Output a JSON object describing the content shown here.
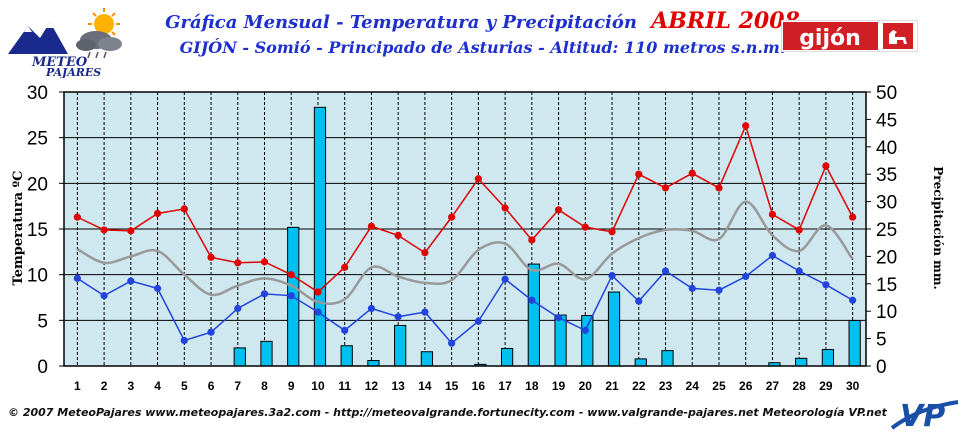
{
  "header": {
    "title": "Gráfica Mensual - Temperatura y Precipitación",
    "month": "ABRIL 2008",
    "subtitle": "GIJÓN - Somió - Principado de Asturias - Altitud: 110 metros s.n.m.",
    "logo_left_text_1": "METEO",
    "logo_left_text_2": "PAJARES",
    "logo_right_text": "gijón"
  },
  "footer": {
    "text": "© 2007 MeteoPajares www.meteopajares.3a2.com - http://meteovalgrande.fortunecity.com - www.valgrande-pajares.net Meteorología VP.net",
    "logo_text": "VP"
  },
  "colors": {
    "plot_bg": "#cfe8ef",
    "bar": "#00c0f0",
    "max_temp": "#e00000",
    "min_temp": "#2244dd",
    "avg_temp": "#999999",
    "title_blue": "#1d2fcc",
    "title_red": "#e00000"
  },
  "chart_data": {
    "type": "bar",
    "xlabel": "",
    "ylabel": "Temperatura ºC",
    "y2label": "Precipitación mm.",
    "ylim": [
      0,
      30
    ],
    "y2lim": [
      0,
      50
    ],
    "yticks": [
      0,
      5,
      10,
      15,
      20,
      25,
      30
    ],
    "y2ticks": [
      0,
      5,
      10,
      15,
      20,
      25,
      30,
      35,
      40,
      45,
      50
    ],
    "grid": true,
    "categories": [
      "1",
      "2",
      "3",
      "4",
      "5",
      "6",
      "7",
      "8",
      "9",
      "10",
      "11",
      "12",
      "13",
      "14",
      "15",
      "16",
      "17",
      "18",
      "19",
      "20",
      "21",
      "22",
      "23",
      "24",
      "25",
      "26",
      "27",
      "28",
      "29",
      "30"
    ],
    "series": [
      {
        "kind": "bar",
        "axis": "right",
        "values": [
          0,
          0,
          0,
          0,
          0,
          0,
          3.3,
          4.5,
          25.3,
          47.2,
          3.7,
          1.0,
          7.4,
          2.6,
          0,
          0.3,
          3.2,
          18.6,
          9.3,
          9.2,
          13.5,
          1.3,
          2.8,
          0,
          0,
          0,
          0.6,
          1.4,
          3.0,
          8.3
        ]
      },
      {
        "kind": "line",
        "axis": "left",
        "color": "#e00000",
        "values": [
          16.3,
          14.9,
          14.8,
          16.7,
          17.2,
          11.9,
          11.3,
          11.4,
          10.0,
          8.1,
          10.8,
          15.3,
          14.3,
          12.4,
          16.3,
          20.5,
          17.3,
          13.8,
          17.1,
          15.2,
          14.7,
          21.0,
          19.5,
          21.1,
          19.5,
          26.3,
          16.6,
          14.9,
          21.9,
          16.3
        ]
      },
      {
        "kind": "line",
        "axis": "left",
        "color": "#2244dd",
        "values": [
          9.6,
          7.7,
          9.3,
          8.5,
          2.8,
          3.7,
          6.3,
          7.9,
          7.7,
          5.9,
          3.9,
          6.3,
          5.4,
          5.9,
          2.5,
          4.9,
          9.5,
          7.2,
          5.3,
          3.9,
          9.9,
          7.1,
          10.4,
          8.5,
          8.3,
          9.8,
          12.1,
          10.4,
          8.9,
          7.2
        ]
      },
      {
        "kind": "smooth",
        "axis": "left",
        "color": "#999999",
        "values": [
          12.8,
          11.3,
          12.0,
          12.6,
          10.0,
          7.8,
          8.8,
          9.6,
          8.8,
          7.0,
          7.3,
          10.8,
          9.8,
          9.1,
          9.4,
          12.7,
          13.4,
          10.5,
          11.2,
          9.5,
          12.3,
          14.0,
          14.9,
          14.8,
          13.9,
          18.0,
          14.3,
          12.6,
          15.4,
          11.7
        ]
      }
    ]
  }
}
